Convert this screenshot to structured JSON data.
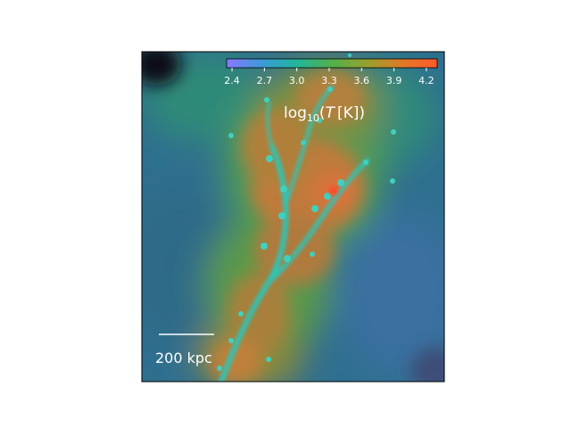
{
  "chart_data": {
    "type": "heatmap",
    "title": "",
    "xlabel": "",
    "ylabel": "",
    "colorbar": {
      "label_main": "log",
      "label_sub": "10",
      "label_open": "(",
      "label_var": "T",
      "label_unit": "[K])",
      "range": [
        2.35,
        4.3
      ],
      "ticks": [
        2.4,
        2.7,
        3.0,
        3.3,
        3.6,
        3.9,
        4.2
      ],
      "tick_labels": [
        "2.4",
        "2.7",
        "3.0",
        "3.3",
        "3.6",
        "3.9",
        "4.2"
      ],
      "placement": "top-right inset",
      "colors": [
        "#8a78ff",
        "#3a9ad8",
        "#22b59a",
        "#52b04a",
        "#97a02e",
        "#e07a28",
        "#ff5a2a"
      ]
    },
    "scale_bar": {
      "label": "200 kpc"
    },
    "grid": false,
    "axes_ticks": false
  }
}
